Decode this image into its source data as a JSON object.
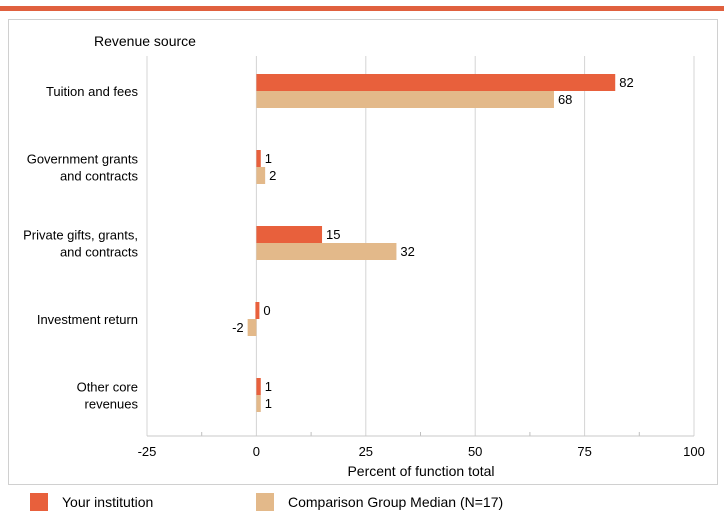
{
  "chart_data": {
    "type": "bar",
    "orientation": "horizontal",
    "y_axis_title": "Revenue source",
    "xlabel": "Percent of function total",
    "xlim": [
      -25,
      100
    ],
    "xticks": [
      "-25",
      "0",
      "25",
      "50",
      "75",
      "100"
    ],
    "grid": true,
    "legend_position": "bottom",
    "categories": [
      [
        "Tuition and fees"
      ],
      [
        "Government grants",
        "and contracts"
      ],
      [
        "Private gifts, grants,",
        "and contracts"
      ],
      [
        "Investment return"
      ],
      [
        "Other core",
        "revenues"
      ]
    ],
    "series": [
      {
        "name": "Your institution",
        "color": "#e8603c",
        "values": [
          82,
          1,
          15,
          0,
          1
        ]
      },
      {
        "name": "Comparison Group Median (N=17)",
        "color": "#e3b98a",
        "values": [
          68,
          2,
          32,
          -2,
          1
        ]
      }
    ]
  }
}
